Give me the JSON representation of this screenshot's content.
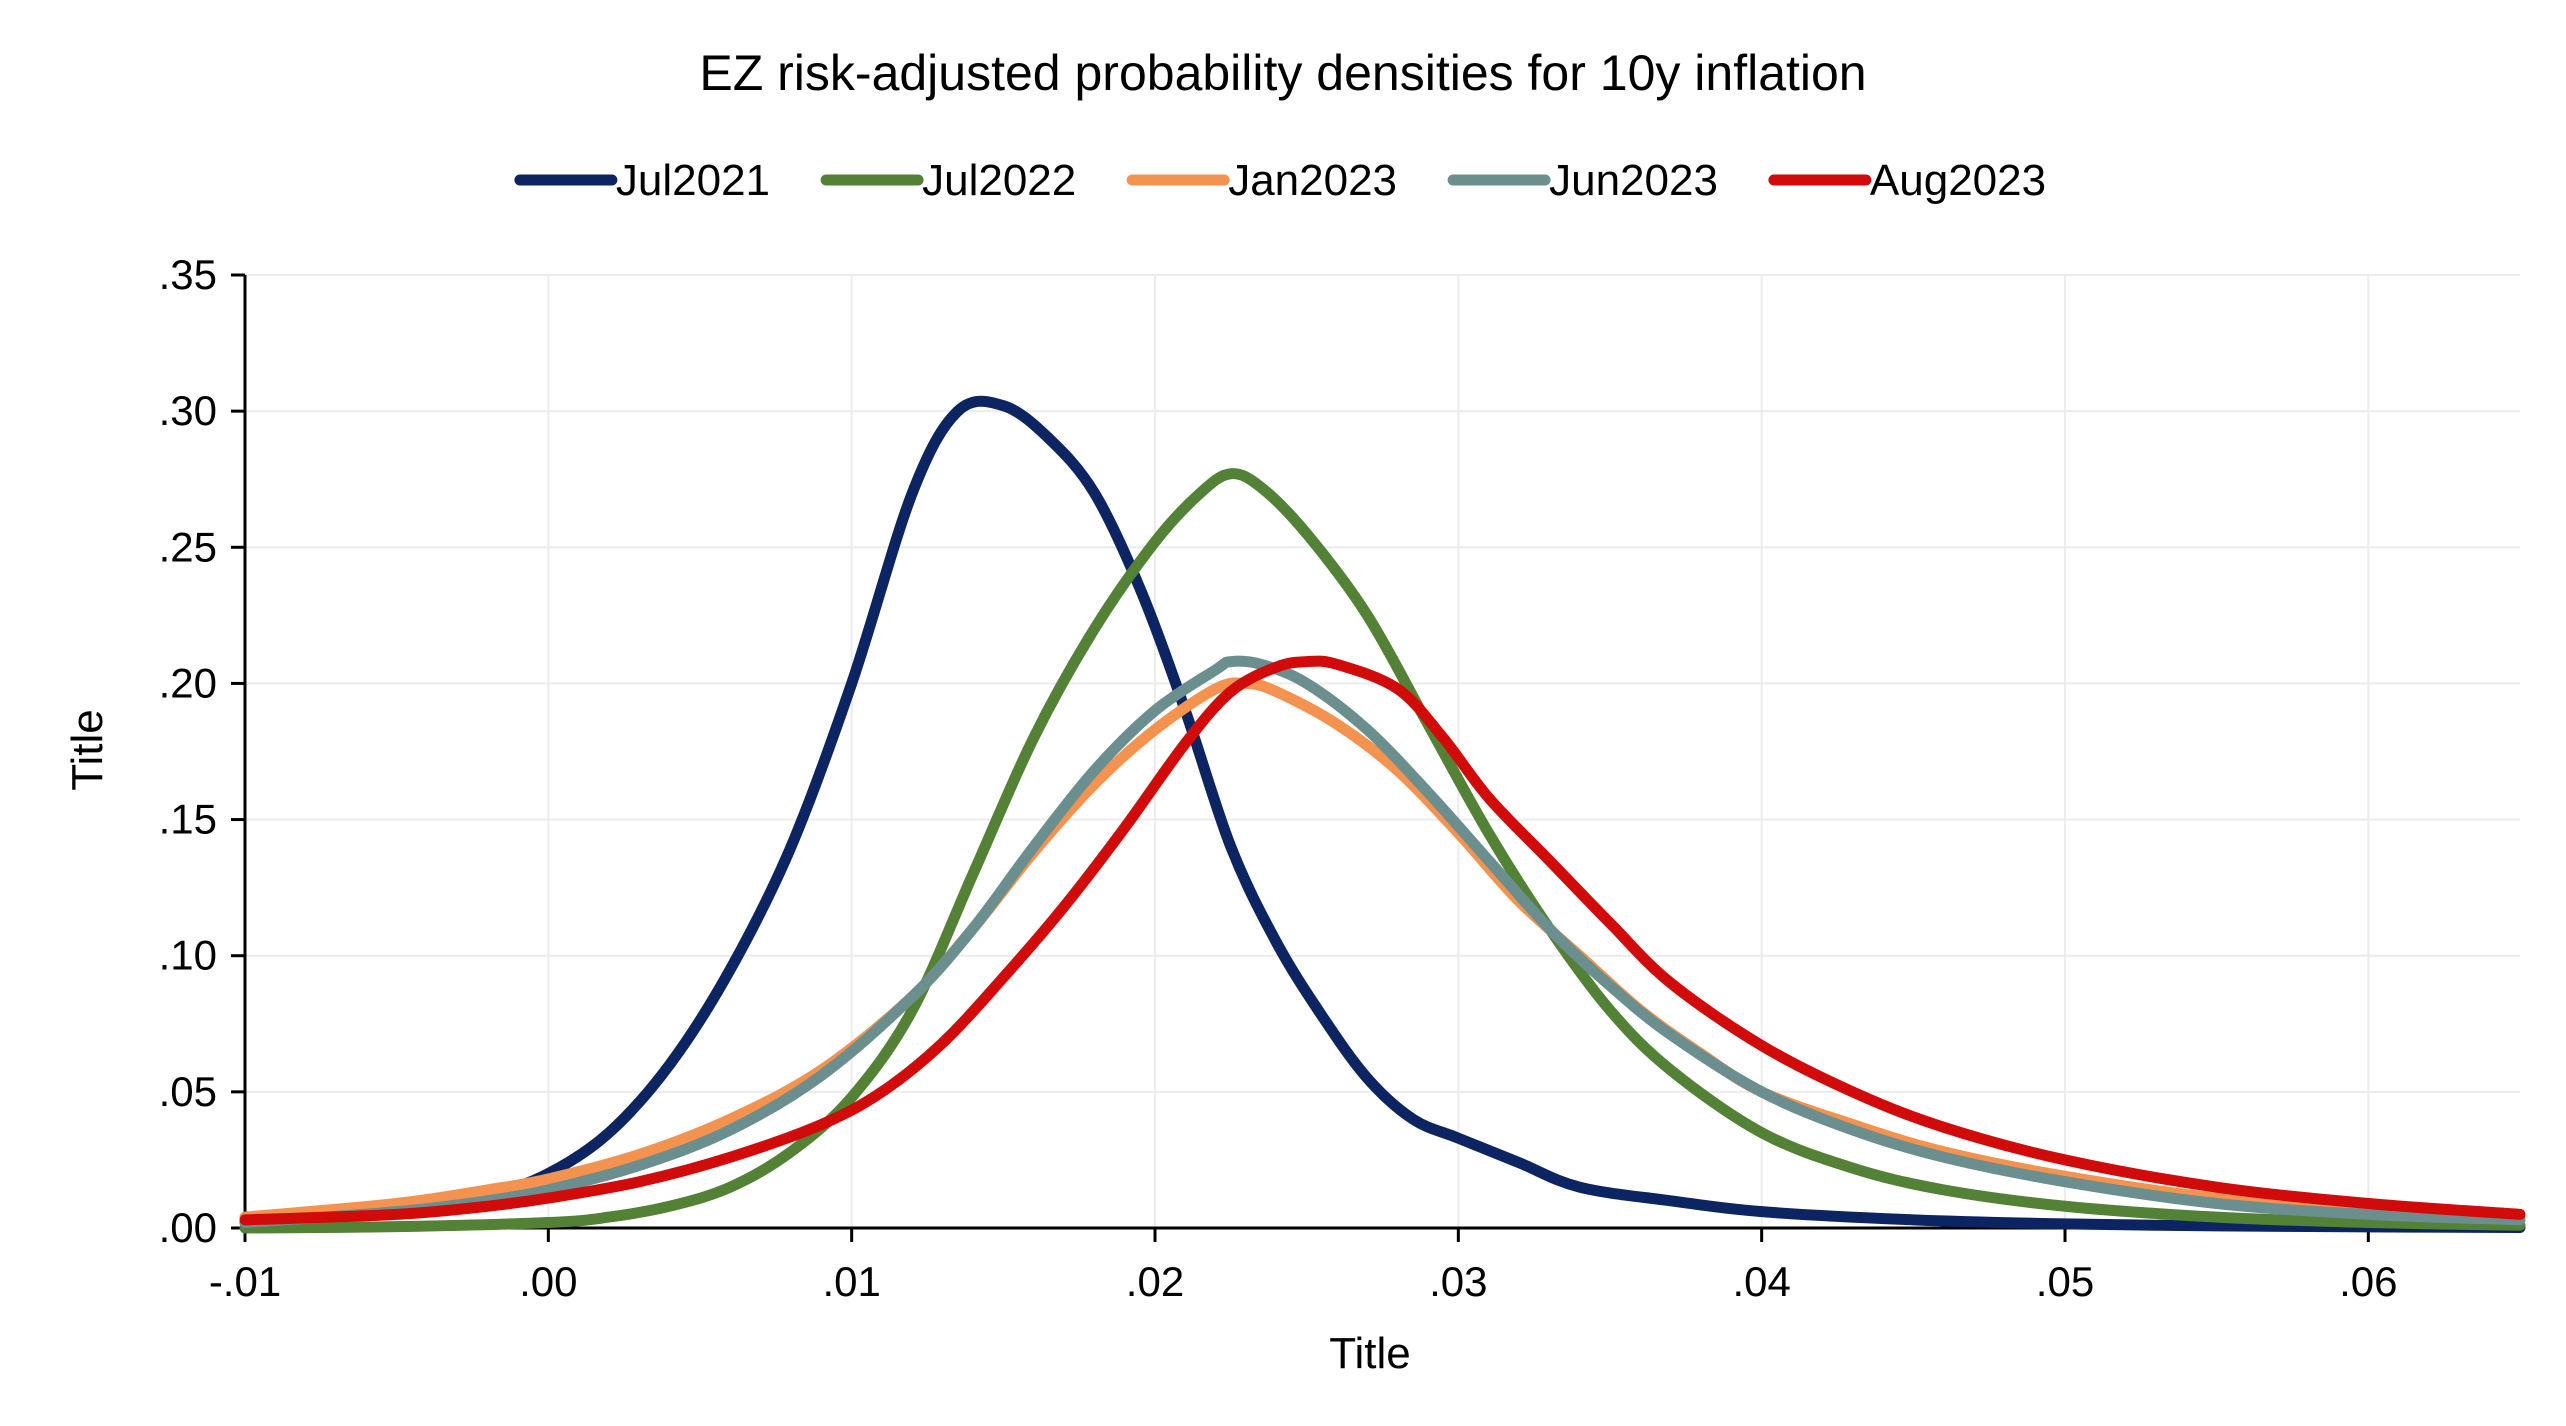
{
  "chart_data": {
    "type": "line",
    "title": "EZ risk-adjusted probability densities for 10y inflation",
    "xlabel": "Title",
    "ylabel": "Title",
    "xlim": [
      -0.01,
      0.065
    ],
    "ylim": [
      0,
      0.35
    ],
    "x_ticks": [
      -0.01,
      0.0,
      0.01,
      0.02,
      0.03,
      0.04,
      0.05,
      0.06
    ],
    "x_tick_labels": [
      "-.01",
      ".00",
      ".01",
      ".02",
      ".03",
      ".04",
      ".05",
      ".06"
    ],
    "y_ticks": [
      0.0,
      0.05,
      0.1,
      0.15,
      0.2,
      0.25,
      0.3,
      0.35
    ],
    "y_tick_labels": [
      ".00",
      ".05",
      ".10",
      ".15",
      ".20",
      ".25",
      ".30",
      ".35"
    ],
    "grid": true,
    "legend_position": "top",
    "series": [
      {
        "name": "Jul2021",
        "color": "#0c2461",
        "points": [
          [
            -0.01,
            0.002
          ],
          [
            -0.005,
            0.006
          ],
          [
            -0.002,
            0.012
          ],
          [
            0.0,
            0.02
          ],
          [
            0.002,
            0.035
          ],
          [
            0.004,
            0.06
          ],
          [
            0.006,
            0.095
          ],
          [
            0.008,
            0.14
          ],
          [
            0.01,
            0.2
          ],
          [
            0.012,
            0.27
          ],
          [
            0.0135,
            0.3
          ],
          [
            0.015,
            0.302
          ],
          [
            0.0165,
            0.29
          ],
          [
            0.018,
            0.27
          ],
          [
            0.0195,
            0.235
          ],
          [
            0.021,
            0.19
          ],
          [
            0.0225,
            0.14
          ],
          [
            0.024,
            0.105
          ],
          [
            0.0255,
            0.078
          ],
          [
            0.027,
            0.055
          ],
          [
            0.0285,
            0.04
          ],
          [
            0.03,
            0.033
          ],
          [
            0.032,
            0.024
          ],
          [
            0.034,
            0.015
          ],
          [
            0.037,
            0.01
          ],
          [
            0.04,
            0.006
          ],
          [
            0.045,
            0.003
          ],
          [
            0.05,
            0.0015
          ],
          [
            0.055,
            0.0008
          ],
          [
            0.06,
            0.0004
          ],
          [
            0.065,
            0.0002
          ]
        ]
      },
      {
        "name": "Jul2022",
        "color": "#538135",
        "points": [
          [
            -0.01,
            0.0
          ],
          [
            -0.005,
            0.0005
          ],
          [
            0.0,
            0.002
          ],
          [
            0.002,
            0.004
          ],
          [
            0.004,
            0.008
          ],
          [
            0.006,
            0.015
          ],
          [
            0.008,
            0.028
          ],
          [
            0.01,
            0.048
          ],
          [
            0.012,
            0.08
          ],
          [
            0.014,
            0.13
          ],
          [
            0.016,
            0.18
          ],
          [
            0.018,
            0.22
          ],
          [
            0.02,
            0.252
          ],
          [
            0.0215,
            0.27
          ],
          [
            0.0225,
            0.277
          ],
          [
            0.0235,
            0.272
          ],
          [
            0.025,
            0.255
          ],
          [
            0.027,
            0.225
          ],
          [
            0.029,
            0.185
          ],
          [
            0.031,
            0.145
          ],
          [
            0.033,
            0.11
          ],
          [
            0.035,
            0.08
          ],
          [
            0.037,
            0.058
          ],
          [
            0.04,
            0.035
          ],
          [
            0.043,
            0.022
          ],
          [
            0.046,
            0.014
          ],
          [
            0.05,
            0.008
          ],
          [
            0.055,
            0.004
          ],
          [
            0.06,
            0.002
          ],
          [
            0.065,
            0.001
          ]
        ]
      },
      {
        "name": "Jan2023",
        "color": "#f4924f",
        "points": [
          [
            -0.01,
            0.004
          ],
          [
            -0.005,
            0.009
          ],
          [
            -0.002,
            0.014
          ],
          [
            0.0,
            0.018
          ],
          [
            0.003,
            0.027
          ],
          [
            0.006,
            0.04
          ],
          [
            0.009,
            0.058
          ],
          [
            0.012,
            0.085
          ],
          [
            0.014,
            0.11
          ],
          [
            0.016,
            0.138
          ],
          [
            0.018,
            0.163
          ],
          [
            0.02,
            0.183
          ],
          [
            0.022,
            0.198
          ],
          [
            0.023,
            0.2
          ],
          [
            0.024,
            0.197
          ],
          [
            0.026,
            0.185
          ],
          [
            0.028,
            0.168
          ],
          [
            0.03,
            0.145
          ],
          [
            0.032,
            0.12
          ],
          [
            0.034,
            0.1
          ],
          [
            0.036,
            0.08
          ],
          [
            0.038,
            0.064
          ],
          [
            0.04,
            0.05
          ],
          [
            0.043,
            0.038
          ],
          [
            0.046,
            0.028
          ],
          [
            0.05,
            0.019
          ],
          [
            0.055,
            0.011
          ],
          [
            0.06,
            0.007
          ],
          [
            0.065,
            0.004
          ]
        ]
      },
      {
        "name": "Jun2023",
        "color": "#6b8e8e",
        "points": [
          [
            -0.01,
            0.002
          ],
          [
            -0.005,
            0.006
          ],
          [
            -0.002,
            0.01
          ],
          [
            0.0,
            0.014
          ],
          [
            0.003,
            0.023
          ],
          [
            0.006,
            0.036
          ],
          [
            0.009,
            0.056
          ],
          [
            0.012,
            0.085
          ],
          [
            0.014,
            0.11
          ],
          [
            0.016,
            0.14
          ],
          [
            0.018,
            0.168
          ],
          [
            0.02,
            0.19
          ],
          [
            0.022,
            0.205
          ],
          [
            0.0225,
            0.208
          ],
          [
            0.0235,
            0.207
          ],
          [
            0.025,
            0.2
          ],
          [
            0.027,
            0.183
          ],
          [
            0.029,
            0.16
          ],
          [
            0.031,
            0.135
          ],
          [
            0.033,
            0.11
          ],
          [
            0.035,
            0.089
          ],
          [
            0.037,
            0.071
          ],
          [
            0.04,
            0.05
          ],
          [
            0.043,
            0.036
          ],
          [
            0.046,
            0.026
          ],
          [
            0.05,
            0.017
          ],
          [
            0.055,
            0.009
          ],
          [
            0.06,
            0.005
          ],
          [
            0.065,
            0.003
          ]
        ]
      },
      {
        "name": "Aug2023",
        "color": "#d10a0a",
        "points": [
          [
            -0.01,
            0.003
          ],
          [
            -0.005,
            0.005
          ],
          [
            -0.002,
            0.008
          ],
          [
            0.0,
            0.011
          ],
          [
            0.003,
            0.017
          ],
          [
            0.006,
            0.026
          ],
          [
            0.009,
            0.038
          ],
          [
            0.011,
            0.05
          ],
          [
            0.013,
            0.068
          ],
          [
            0.015,
            0.092
          ],
          [
            0.017,
            0.118
          ],
          [
            0.019,
            0.147
          ],
          [
            0.021,
            0.178
          ],
          [
            0.0225,
            0.197
          ],
          [
            0.024,
            0.206
          ],
          [
            0.025,
            0.208
          ],
          [
            0.026,
            0.207
          ],
          [
            0.028,
            0.198
          ],
          [
            0.0295,
            0.18
          ],
          [
            0.031,
            0.158
          ],
          [
            0.033,
            0.135
          ],
          [
            0.035,
            0.112
          ],
          [
            0.037,
            0.09
          ],
          [
            0.04,
            0.067
          ],
          [
            0.043,
            0.05
          ],
          [
            0.046,
            0.037
          ],
          [
            0.05,
            0.025
          ],
          [
            0.055,
            0.015
          ],
          [
            0.06,
            0.009
          ],
          [
            0.065,
            0.005
          ]
        ]
      }
    ]
  }
}
